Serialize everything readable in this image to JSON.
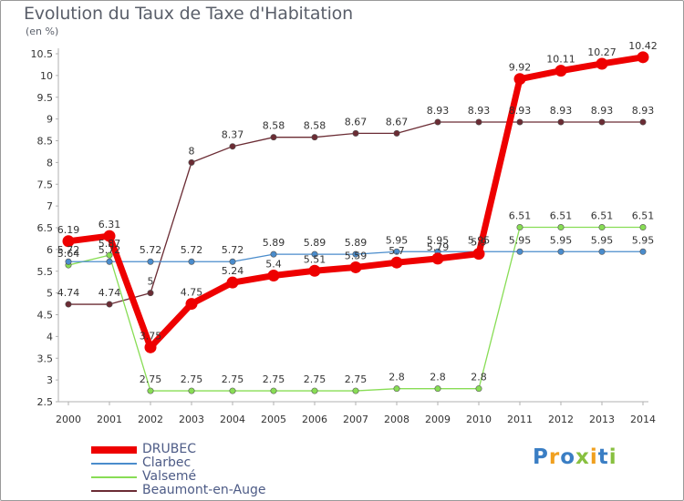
{
  "title": "Evolution du Taux de Taxe d'Habitation",
  "unit_label": "(en %)",
  "logo": {
    "letters": [
      "P",
      "r",
      "o",
      "x",
      "i",
      "t",
      "i"
    ],
    "colors": [
      "#3a7ec4",
      "#f0a020",
      "#3a7ec4",
      "#88c040",
      "#f0a020",
      "#3a7ec4",
      "#88c040"
    ]
  },
  "chart_data": {
    "type": "line",
    "x": [
      "2000",
      "2001",
      "2002",
      "2003",
      "2004",
      "2005",
      "2006",
      "2007",
      "2008",
      "2009",
      "2010",
      "2011",
      "2012",
      "2013",
      "2014"
    ],
    "ylim": [
      2.5,
      10.5
    ],
    "yticks": [
      "2.5",
      "3",
      "3.5",
      "4",
      "4.5",
      "5",
      "5.5",
      "6",
      "6.5",
      "7",
      "7.5",
      "8",
      "8.5",
      "9",
      "9.5",
      "10",
      "10.5"
    ],
    "grid": false,
    "legend_position": "bottom-left",
    "series": [
      {
        "name": "DRUBEC",
        "color": "#ee0000",
        "values": [
          6.19,
          6.31,
          3.75,
          4.75,
          5.24,
          5.4,
          5.51,
          5.59,
          5.7,
          5.79,
          5.9,
          9.92,
          10.11,
          10.27,
          10.42
        ],
        "labels": [
          "6.19",
          "6.31",
          "3.75",
          "4.75",
          "5.24",
          "5.4",
          "5.51",
          "5.59",
          "5.7",
          "5.79",
          "5.9",
          "9.92",
          "10.11",
          "10.27",
          "10.42"
        ]
      },
      {
        "name": "Clarbec",
        "color": "#4a8ccc",
        "values": [
          5.72,
          5.72,
          5.72,
          5.72,
          5.72,
          5.89,
          5.89,
          5.89,
          5.95,
          5.95,
          5.95,
          5.95,
          5.95,
          5.95,
          5.95
        ],
        "labels": [
          "5.72",
          "5.72",
          "5.72",
          "5.72",
          "5.72",
          "5.89",
          "5.89",
          "5.89",
          "5.95",
          "5.95",
          "5.95",
          "5.95",
          "5.95",
          "5.95",
          "5.95"
        ]
      },
      {
        "name": "Valsemé",
        "color": "#88dd55",
        "values": [
          5.64,
          5.87,
          2.75,
          2.75,
          2.75,
          2.75,
          2.75,
          2.75,
          2.8,
          2.8,
          2.8,
          6.51,
          6.51,
          6.51,
          6.51
        ],
        "labels": [
          "5.64",
          "5.87",
          "2.75",
          "2.75",
          "2.75",
          "2.75",
          "2.75",
          "2.75",
          "2.8",
          "2.8",
          "2.8",
          "6.51",
          "6.51",
          "6.51",
          "6.51"
        ]
      },
      {
        "name": "Beaumont-en-Auge",
        "color": "#6b2c34",
        "values": [
          4.74,
          4.74,
          5.0,
          8.0,
          8.37,
          8.58,
          8.58,
          8.67,
          8.67,
          8.93,
          8.93,
          8.93,
          8.93,
          8.93,
          8.93
        ],
        "labels": [
          "4.74",
          "4.74",
          "5",
          "8",
          "8.37",
          "8.58",
          "8.58",
          "8.67",
          "8.67",
          "8.93",
          "8.93",
          "8.93",
          "8.93",
          "8.93",
          "8.93"
        ]
      }
    ]
  }
}
